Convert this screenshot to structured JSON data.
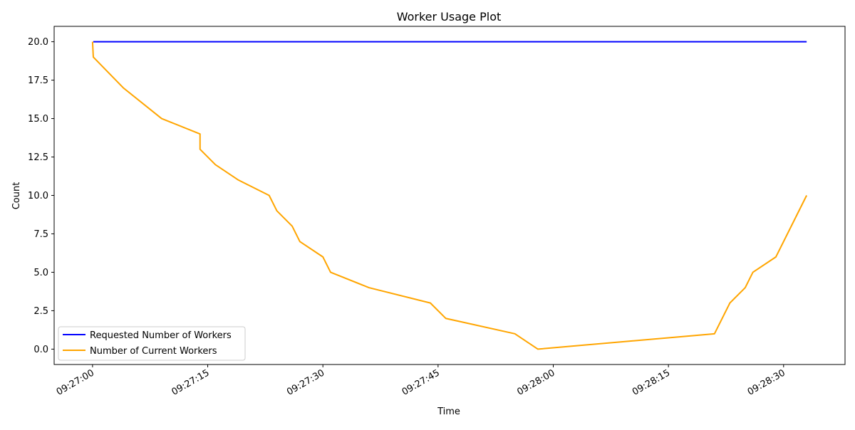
{
  "chart_data": {
    "type": "line",
    "title": "Worker Usage Plot",
    "xlabel": "Time",
    "ylabel": "Count",
    "x_unit": "time-of-day (HH:MM:SS)",
    "xlim": [
      "09:26:55.0",
      "09:28:38.0"
    ],
    "ylim": [
      -1.0,
      21.0
    ],
    "xticks": [
      "09:27:00",
      "09:27:15",
      "09:27:30",
      "09:27:45",
      "09:28:00",
      "09:28:15",
      "09:28:30"
    ],
    "yticks": [
      "0.0",
      "2.5",
      "5.0",
      "7.5",
      "10.0",
      "12.5",
      "15.0",
      "17.5",
      "20.0"
    ],
    "grid": false,
    "legend_position": "lower-left",
    "series": [
      {
        "name": "Requested Number of Workers",
        "color": "#0000ff",
        "points": [
          [
            "09:27:00.1",
            20
          ],
          [
            "09:28:33.0",
            20
          ]
        ]
      },
      {
        "name": "Number of Current Workers",
        "color": "#ffa500",
        "points": [
          [
            "09:27:00.0",
            20
          ],
          [
            "09:27:00.1",
            19
          ],
          [
            "09:27:04.0",
            17
          ],
          [
            "09:27:09.0",
            15
          ],
          [
            "09:27:14.0",
            14
          ],
          [
            "09:27:14.0",
            13
          ],
          [
            "09:27:16.0",
            12
          ],
          [
            "09:27:19.0",
            11
          ],
          [
            "09:27:23.0",
            10
          ],
          [
            "09:27:24.0",
            9
          ],
          [
            "09:27:26.0",
            8
          ],
          [
            "09:27:27.0",
            7
          ],
          [
            "09:27:30.0",
            6
          ],
          [
            "09:27:31.0",
            5
          ],
          [
            "09:27:36.0",
            4
          ],
          [
            "09:27:44.0",
            3
          ],
          [
            "09:27:46.0",
            2
          ],
          [
            "09:27:55.0",
            1
          ],
          [
            "09:27:58.0",
            0
          ],
          [
            "09:28:21.0",
            1
          ],
          [
            "09:28:23.0",
            3
          ],
          [
            "09:28:25.0",
            4
          ],
          [
            "09:28:26.0",
            5
          ],
          [
            "09:28:29.0",
            6
          ],
          [
            "09:28:33.0",
            10
          ]
        ]
      }
    ]
  }
}
